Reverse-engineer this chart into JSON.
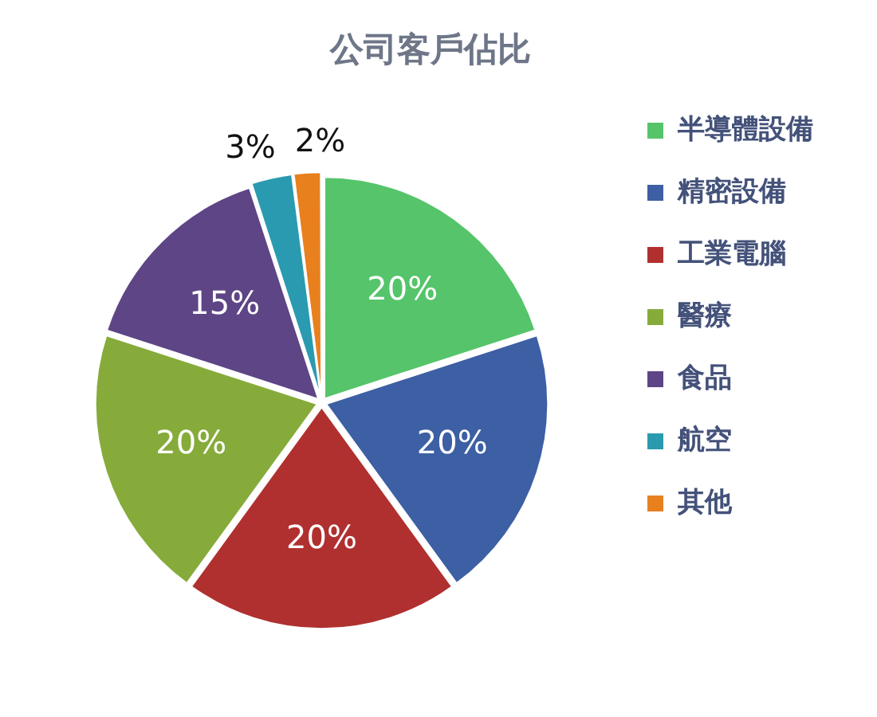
{
  "chart_data": {
    "type": "pie",
    "title": "公司客戶佔比",
    "categories": [
      "半導體設備",
      "精密設備",
      "工業電腦",
      "醫療",
      "食品",
      "航空",
      "其他"
    ],
    "values": [
      20,
      20,
      20,
      20,
      15,
      3,
      2
    ],
    "colors": [
      "#55c46a",
      "#3d5fa3",
      "#b03030",
      "#86ab3a",
      "#5e4585",
      "#2a9ab0",
      "#e8801e"
    ],
    "value_labels": [
      "20%",
      "20%",
      "20%",
      "20%",
      "15%",
      "3%",
      "2%"
    ],
    "legend": "right"
  }
}
